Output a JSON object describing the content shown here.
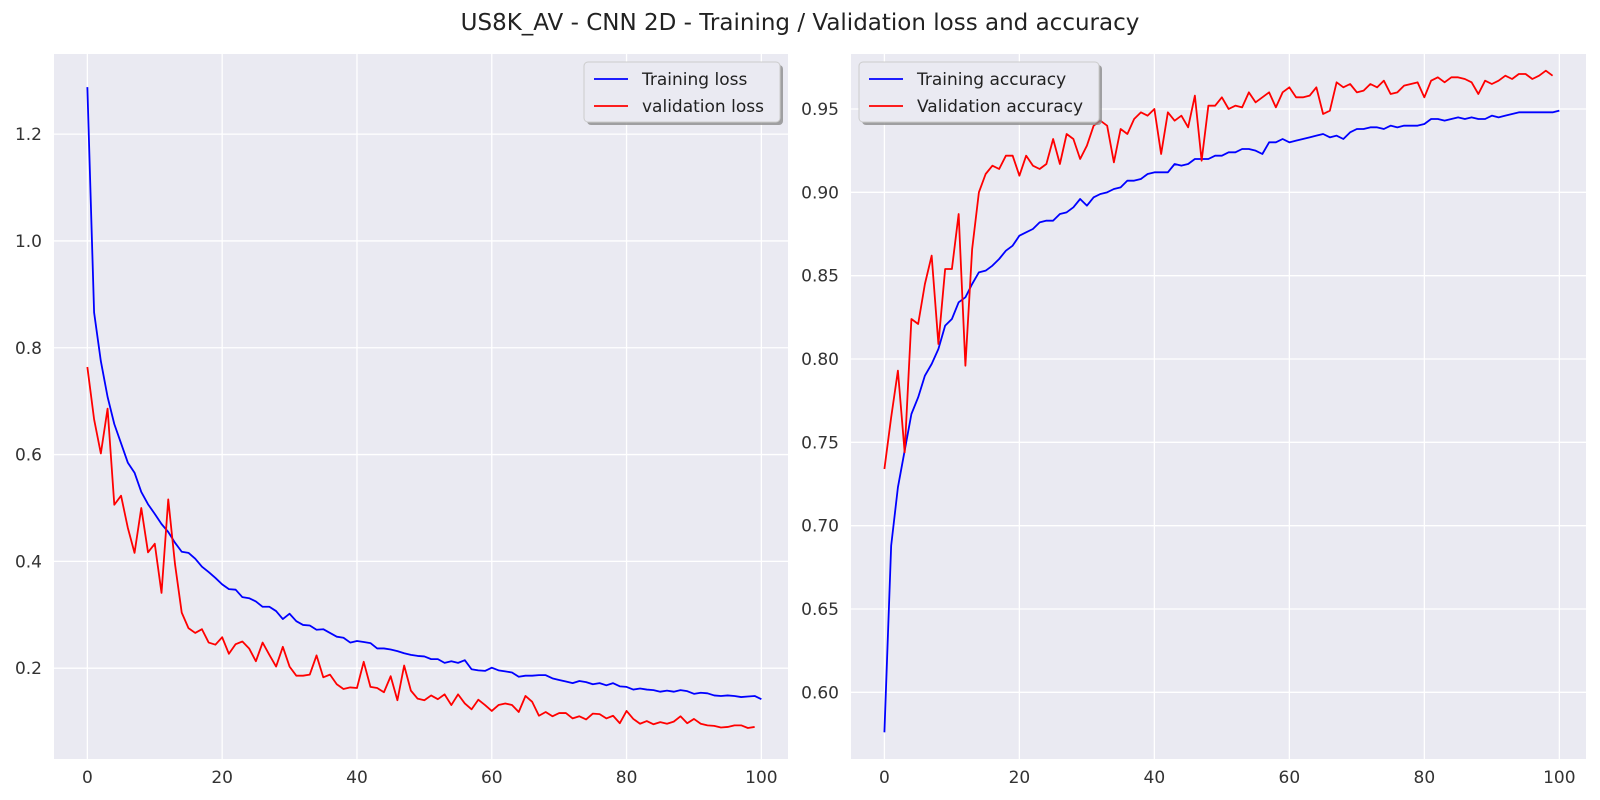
{
  "figure": {
    "title": "US8K_AV - CNN 2D - Training / Validation loss and accuracy"
  },
  "style": {
    "plot_background": "#eaeaf2",
    "grid_color": "#ffffff",
    "training_color": "#0000ff",
    "validation_color": "#ff0000"
  },
  "chart_data": [
    {
      "type": "line",
      "title": "",
      "xlabel": "",
      "ylabel": "",
      "xlim": [
        -4.95,
        103.95
      ],
      "ylim": [
        0.03,
        1.35
      ],
      "xticks": [
        0,
        20,
        40,
        60,
        80,
        100
      ],
      "xtick_labels": [
        "0",
        "20",
        "40",
        "60",
        "80",
        "100"
      ],
      "yticks": [
        0.2,
        0.4,
        0.6,
        0.8,
        1.0,
        1.2
      ],
      "ytick_labels": [
        "0.2",
        "0.4",
        "0.6",
        "0.8",
        "1.0",
        "1.2"
      ],
      "grid": true,
      "legend": {
        "position": "top-right"
      },
      "series": [
        {
          "name": "Training loss",
          "color": "#0000ff",
          "values": [
            1.288,
            0.866,
            0.775,
            0.708,
            0.657,
            0.621,
            0.585,
            0.566,
            0.53,
            0.507,
            0.489,
            0.47,
            0.455,
            0.435,
            0.418,
            0.416,
            0.405,
            0.39,
            0.38,
            0.369,
            0.357,
            0.348,
            0.347,
            0.333,
            0.331,
            0.325,
            0.315,
            0.315,
            0.307,
            0.292,
            0.302,
            0.288,
            0.281,
            0.28,
            0.272,
            0.273,
            0.266,
            0.259,
            0.257,
            0.248,
            0.251,
            0.249,
            0.247,
            0.237,
            0.237,
            0.235,
            0.232,
            0.228,
            0.225,
            0.223,
            0.222,
            0.217,
            0.217,
            0.21,
            0.213,
            0.21,
            0.215,
            0.198,
            0.196,
            0.195,
            0.201,
            0.196,
            0.194,
            0.192,
            0.184,
            0.186,
            0.186,
            0.187,
            0.187,
            0.181,
            0.178,
            0.175,
            0.172,
            0.176,
            0.174,
            0.17,
            0.172,
            0.168,
            0.172,
            0.166,
            0.165,
            0.16,
            0.162,
            0.16,
            0.159,
            0.156,
            0.158,
            0.156,
            0.159,
            0.157,
            0.152,
            0.154,
            0.153,
            0.149,
            0.148,
            0.149,
            0.148,
            0.146,
            0.147,
            0.148,
            0.142
          ]
        },
        {
          "name": "validation loss",
          "color": "#ff0000",
          "values": [
            0.764,
            0.666,
            0.602,
            0.686,
            0.506,
            0.523,
            0.463,
            0.416,
            0.5,
            0.417,
            0.433,
            0.341,
            0.516,
            0.395,
            0.304,
            0.275,
            0.266,
            0.273,
            0.248,
            0.244,
            0.258,
            0.227,
            0.245,
            0.25,
            0.237,
            0.213,
            0.248,
            0.225,
            0.203,
            0.24,
            0.203,
            0.186,
            0.186,
            0.188,
            0.224,
            0.183,
            0.188,
            0.17,
            0.161,
            0.164,
            0.163,
            0.212,
            0.165,
            0.163,
            0.155,
            0.185,
            0.14,
            0.205,
            0.158,
            0.143,
            0.14,
            0.149,
            0.142,
            0.151,
            0.131,
            0.151,
            0.134,
            0.123,
            0.141,
            0.131,
            0.12,
            0.131,
            0.134,
            0.131,
            0.118,
            0.148,
            0.137,
            0.111,
            0.118,
            0.11,
            0.116,
            0.116,
            0.106,
            0.11,
            0.104,
            0.115,
            0.114,
            0.106,
            0.111,
            0.097,
            0.12,
            0.105,
            0.096,
            0.101,
            0.095,
            0.099,
            0.096,
            0.1,
            0.11,
            0.097,
            0.105,
            0.096,
            0.093,
            0.092,
            0.089,
            0.09,
            0.093,
            0.093,
            0.088,
            0.09
          ]
        }
      ]
    },
    {
      "type": "line",
      "title": "",
      "xlabel": "",
      "ylabel": "",
      "xlim": [
        -4.95,
        103.95
      ],
      "ylim": [
        0.56,
        0.983
      ],
      "xticks": [
        0,
        20,
        40,
        60,
        80,
        100
      ],
      "xtick_labels": [
        "0",
        "20",
        "40",
        "60",
        "80",
        "100"
      ],
      "yticks": [
        0.6,
        0.65,
        0.7,
        0.75,
        0.8,
        0.85,
        0.9,
        0.95
      ],
      "ytick_labels": [
        "0.60",
        "0.65",
        "0.70",
        "0.75",
        "0.80",
        "0.85",
        "0.90",
        "0.95"
      ],
      "grid": true,
      "legend": {
        "position": "top-left"
      },
      "series": [
        {
          "name": "Training accuracy",
          "color": "#0000ff",
          "values": [
            0.576,
            0.688,
            0.723,
            0.745,
            0.767,
            0.777,
            0.79,
            0.797,
            0.806,
            0.82,
            0.824,
            0.834,
            0.837,
            0.845,
            0.852,
            0.853,
            0.856,
            0.86,
            0.865,
            0.868,
            0.874,
            0.876,
            0.878,
            0.882,
            0.883,
            0.883,
            0.887,
            0.888,
            0.891,
            0.896,
            0.892,
            0.897,
            0.899,
            0.9,
            0.902,
            0.903,
            0.907,
            0.907,
            0.908,
            0.911,
            0.912,
            0.912,
            0.912,
            0.917,
            0.916,
            0.917,
            0.92,
            0.92,
            0.92,
            0.922,
            0.922,
            0.924,
            0.924,
            0.926,
            0.926,
            0.925,
            0.923,
            0.93,
            0.93,
            0.932,
            0.93,
            0.931,
            0.932,
            0.933,
            0.934,
            0.935,
            0.933,
            0.934,
            0.932,
            0.936,
            0.938,
            0.938,
            0.939,
            0.939,
            0.938,
            0.94,
            0.939,
            0.94,
            0.94,
            0.94,
            0.941,
            0.944,
            0.944,
            0.943,
            0.944,
            0.945,
            0.944,
            0.945,
            0.944,
            0.944,
            0.946,
            0.945,
            0.946,
            0.947,
            0.948,
            0.948,
            0.948,
            0.948,
            0.948,
            0.948,
            0.949
          ]
        },
        {
          "name": "Validation accuracy",
          "color": "#ff0000",
          "values": [
            0.734,
            0.765,
            0.793,
            0.744,
            0.824,
            0.821,
            0.845,
            0.862,
            0.809,
            0.854,
            0.854,
            0.887,
            0.796,
            0.866,
            0.9,
            0.911,
            0.916,
            0.914,
            0.922,
            0.922,
            0.91,
            0.922,
            0.916,
            0.914,
            0.917,
            0.932,
            0.917,
            0.935,
            0.932,
            0.92,
            0.928,
            0.94,
            0.943,
            0.94,
            0.918,
            0.938,
            0.935,
            0.944,
            0.948,
            0.946,
            0.95,
            0.923,
            0.948,
            0.943,
            0.946,
            0.939,
            0.958,
            0.919,
            0.952,
            0.952,
            0.957,
            0.95,
            0.952,
            0.951,
            0.96,
            0.954,
            0.957,
            0.96,
            0.951,
            0.96,
            0.963,
            0.957,
            0.957,
            0.958,
            0.963,
            0.947,
            0.949,
            0.966,
            0.963,
            0.965,
            0.96,
            0.961,
            0.965,
            0.963,
            0.967,
            0.959,
            0.96,
            0.964,
            0.965,
            0.966,
            0.957,
            0.967,
            0.969,
            0.966,
            0.969,
            0.969,
            0.968,
            0.966,
            0.959,
            0.967,
            0.965,
            0.967,
            0.97,
            0.968,
            0.971,
            0.971,
            0.968,
            0.97,
            0.973,
            0.97
          ]
        }
      ]
    }
  ]
}
